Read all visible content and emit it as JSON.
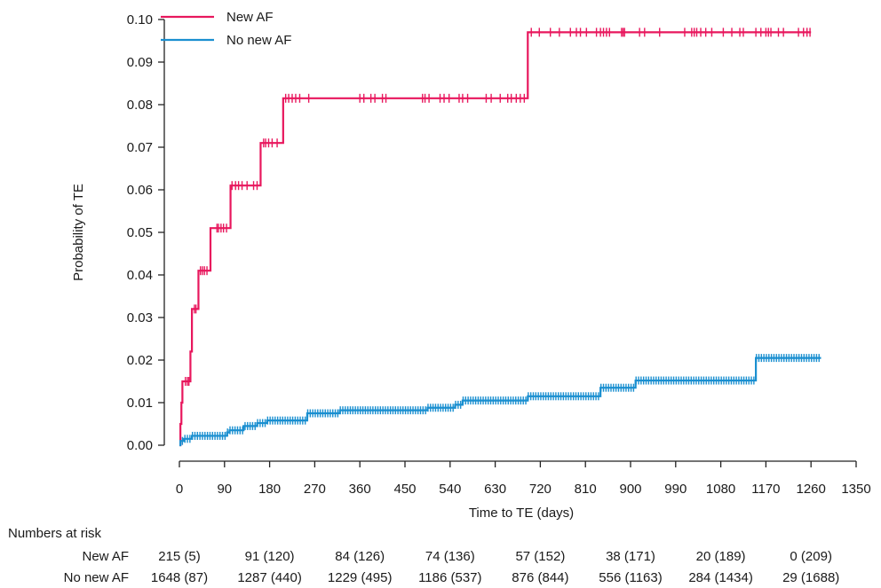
{
  "chart_data": {
    "type": "line",
    "subtype": "kaplan-meier step curve with censoring ticks",
    "title": "",
    "xlabel": "Time to TE (days)",
    "ylabel": "Probability of TE",
    "xlim": [
      0,
      1350
    ],
    "ylim": [
      0,
      0.1
    ],
    "xticks": [
      0,
      90,
      180,
      270,
      360,
      450,
      540,
      630,
      720,
      810,
      900,
      990,
      1080,
      1170,
      1260,
      1350
    ],
    "yticks": [
      "0.00",
      "0.01",
      "0.02",
      "0.03",
      "0.04",
      "0.05",
      "0.06",
      "0.07",
      "0.08",
      "0.09",
      "0.10"
    ],
    "grid": false,
    "legend": "top-left",
    "series": [
      {
        "name": "New AF",
        "color": "#e8175d",
        "steps": [
          [
            0,
            0
          ],
          [
            2,
            0.005
          ],
          [
            4,
            0.01
          ],
          [
            6,
            0.015
          ],
          [
            22,
            0.022
          ],
          [
            25,
            0.032
          ],
          [
            38,
            0.041
          ],
          [
            62,
            0.051
          ],
          [
            102,
            0.061
          ],
          [
            162,
            0.071
          ],
          [
            207,
            0.0815
          ],
          [
            695,
            0.097
          ]
        ],
        "end": 1260,
        "censored": [
          12,
          16,
          19,
          30,
          33,
          42,
          46,
          50,
          55,
          75,
          78,
          83,
          88,
          94,
          105,
          112,
          118,
          125,
          135,
          148,
          155,
          168,
          172,
          178,
          185,
          195,
          212,
          218,
          225,
          232,
          240,
          258,
          360,
          368,
          382,
          390,
          405,
          412,
          485,
          490,
          498,
          520,
          528,
          538,
          558,
          565,
          575,
          612,
          622,
          640,
          655,
          662,
          672,
          680,
          688,
          702,
          718,
          740,
          758,
          780,
          792,
          800,
          812,
          832,
          840,
          846,
          852,
          858,
          882,
          885,
          888,
          918,
          928,
          958,
          1008,
          1022,
          1027,
          1032,
          1040,
          1050,
          1062,
          1085,
          1102,
          1118,
          1125,
          1150,
          1160,
          1170,
          1175,
          1180,
          1195,
          1205,
          1235,
          1245,
          1252,
          1258
        ]
      },
      {
        "name": "No new AF",
        "color": "#1a8fd0",
        "steps": [
          [
            0,
            0
          ],
          [
            2,
            0.001
          ],
          [
            8,
            0.0015
          ],
          [
            25,
            0.0022
          ],
          [
            95,
            0.003
          ],
          [
            100,
            0.0035
          ],
          [
            128,
            0.0045
          ],
          [
            155,
            0.0052
          ],
          [
            175,
            0.0058
          ],
          [
            255,
            0.0075
          ],
          [
            320,
            0.0082
          ],
          [
            495,
            0.0088
          ],
          [
            550,
            0.0095
          ],
          [
            565,
            0.0105
          ],
          [
            695,
            0.0115
          ],
          [
            840,
            0.0135
          ],
          [
            910,
            0.0152
          ],
          [
            1150,
            0.0205
          ]
        ],
        "end": 1280,
        "censored_ranges": [
          [
            6,
            1280,
            5
          ]
        ]
      }
    ],
    "risk_table": {
      "title": "Numbers at risk",
      "columns": [
        0,
        180,
        360,
        540,
        720,
        900,
        1080,
        1260
      ],
      "rows": [
        {
          "label": "New AF",
          "values": [
            "215 (5)",
            "91 (120)",
            "84 (126)",
            "74 (136)",
            "57 (152)",
            "38 (171)",
            "20 (189)",
            "0 (209)"
          ]
        },
        {
          "label": "No new AF",
          "values": [
            "1648 (87)",
            "1287 (440)",
            "1229 (495)",
            "1186 (537)",
            "876 (844)",
            "556 (1163)",
            "284 (1434)",
            "29 (1688)"
          ]
        }
      ]
    }
  }
}
